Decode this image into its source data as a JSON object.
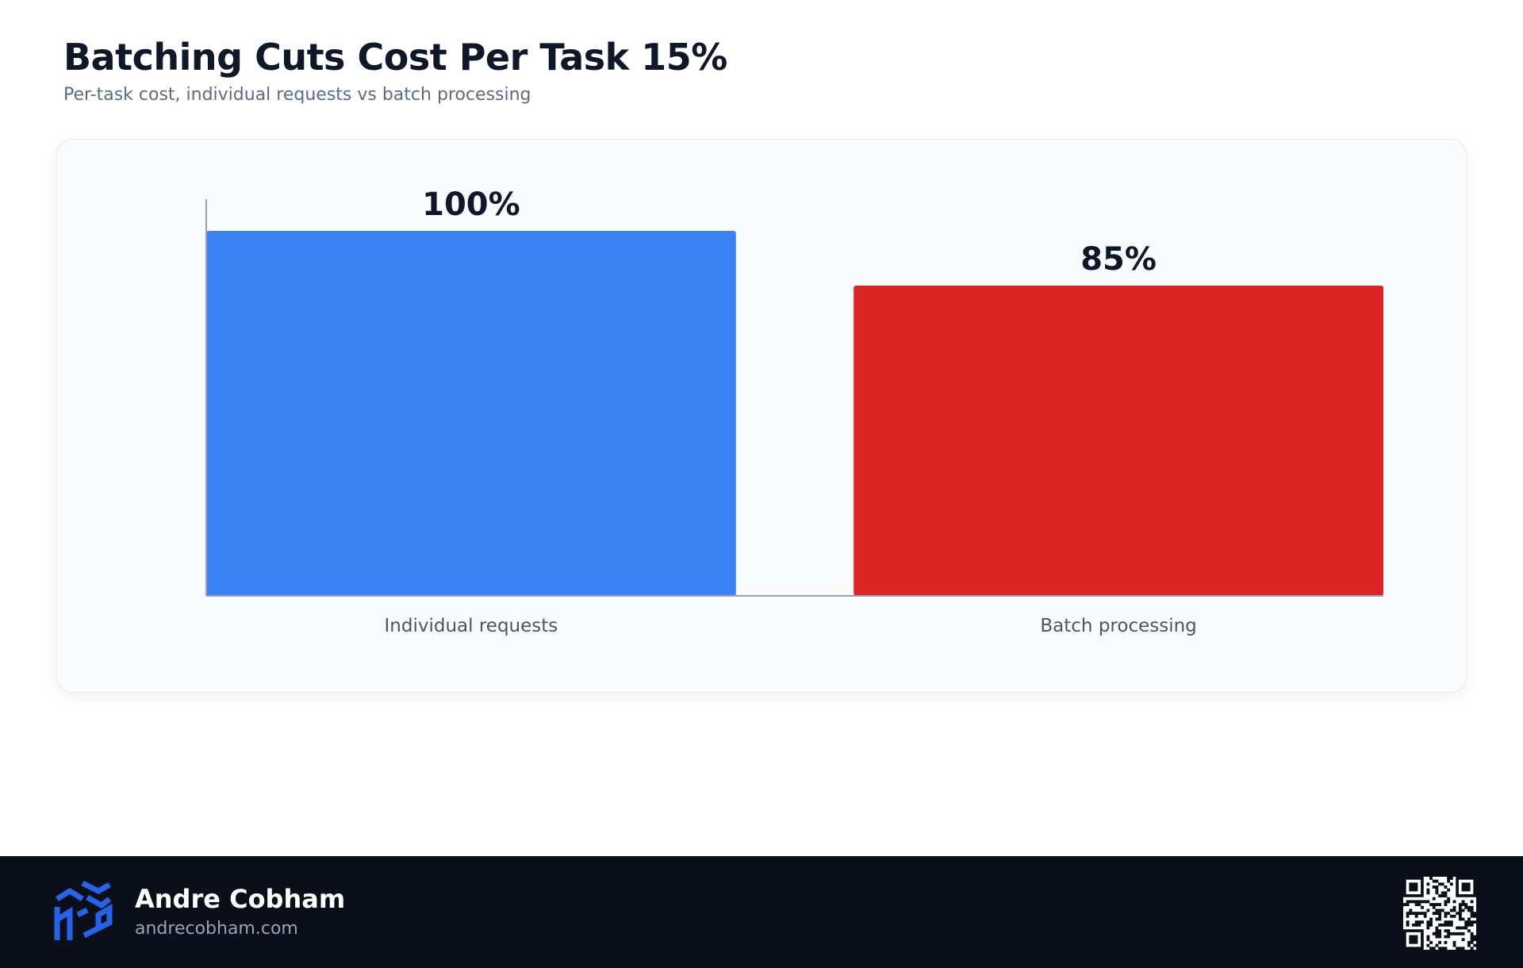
{
  "header": {
    "title": "Batching Cuts Cost Per Task 15%",
    "subtitle": "Per-task cost, individual requests vs batch processing"
  },
  "chart_data": {
    "type": "bar",
    "categories": [
      "Individual requests",
      "Batch processing"
    ],
    "values": [
      100,
      85
    ],
    "value_labels": [
      "100%",
      "85%"
    ],
    "bar_colors": [
      "#3b82f6",
      "#dc2626"
    ],
    "ylim": [
      0,
      100
    ],
    "xlabel": "",
    "ylabel": "",
    "grid": false,
    "legend": "none"
  },
  "footer": {
    "author_name": "Andre Cobham",
    "author_url": "andrecobham.com",
    "logo_icon": "cube-logo-icon",
    "qr_icon": "qr-code-icon",
    "logo_color": "#2563eb"
  }
}
